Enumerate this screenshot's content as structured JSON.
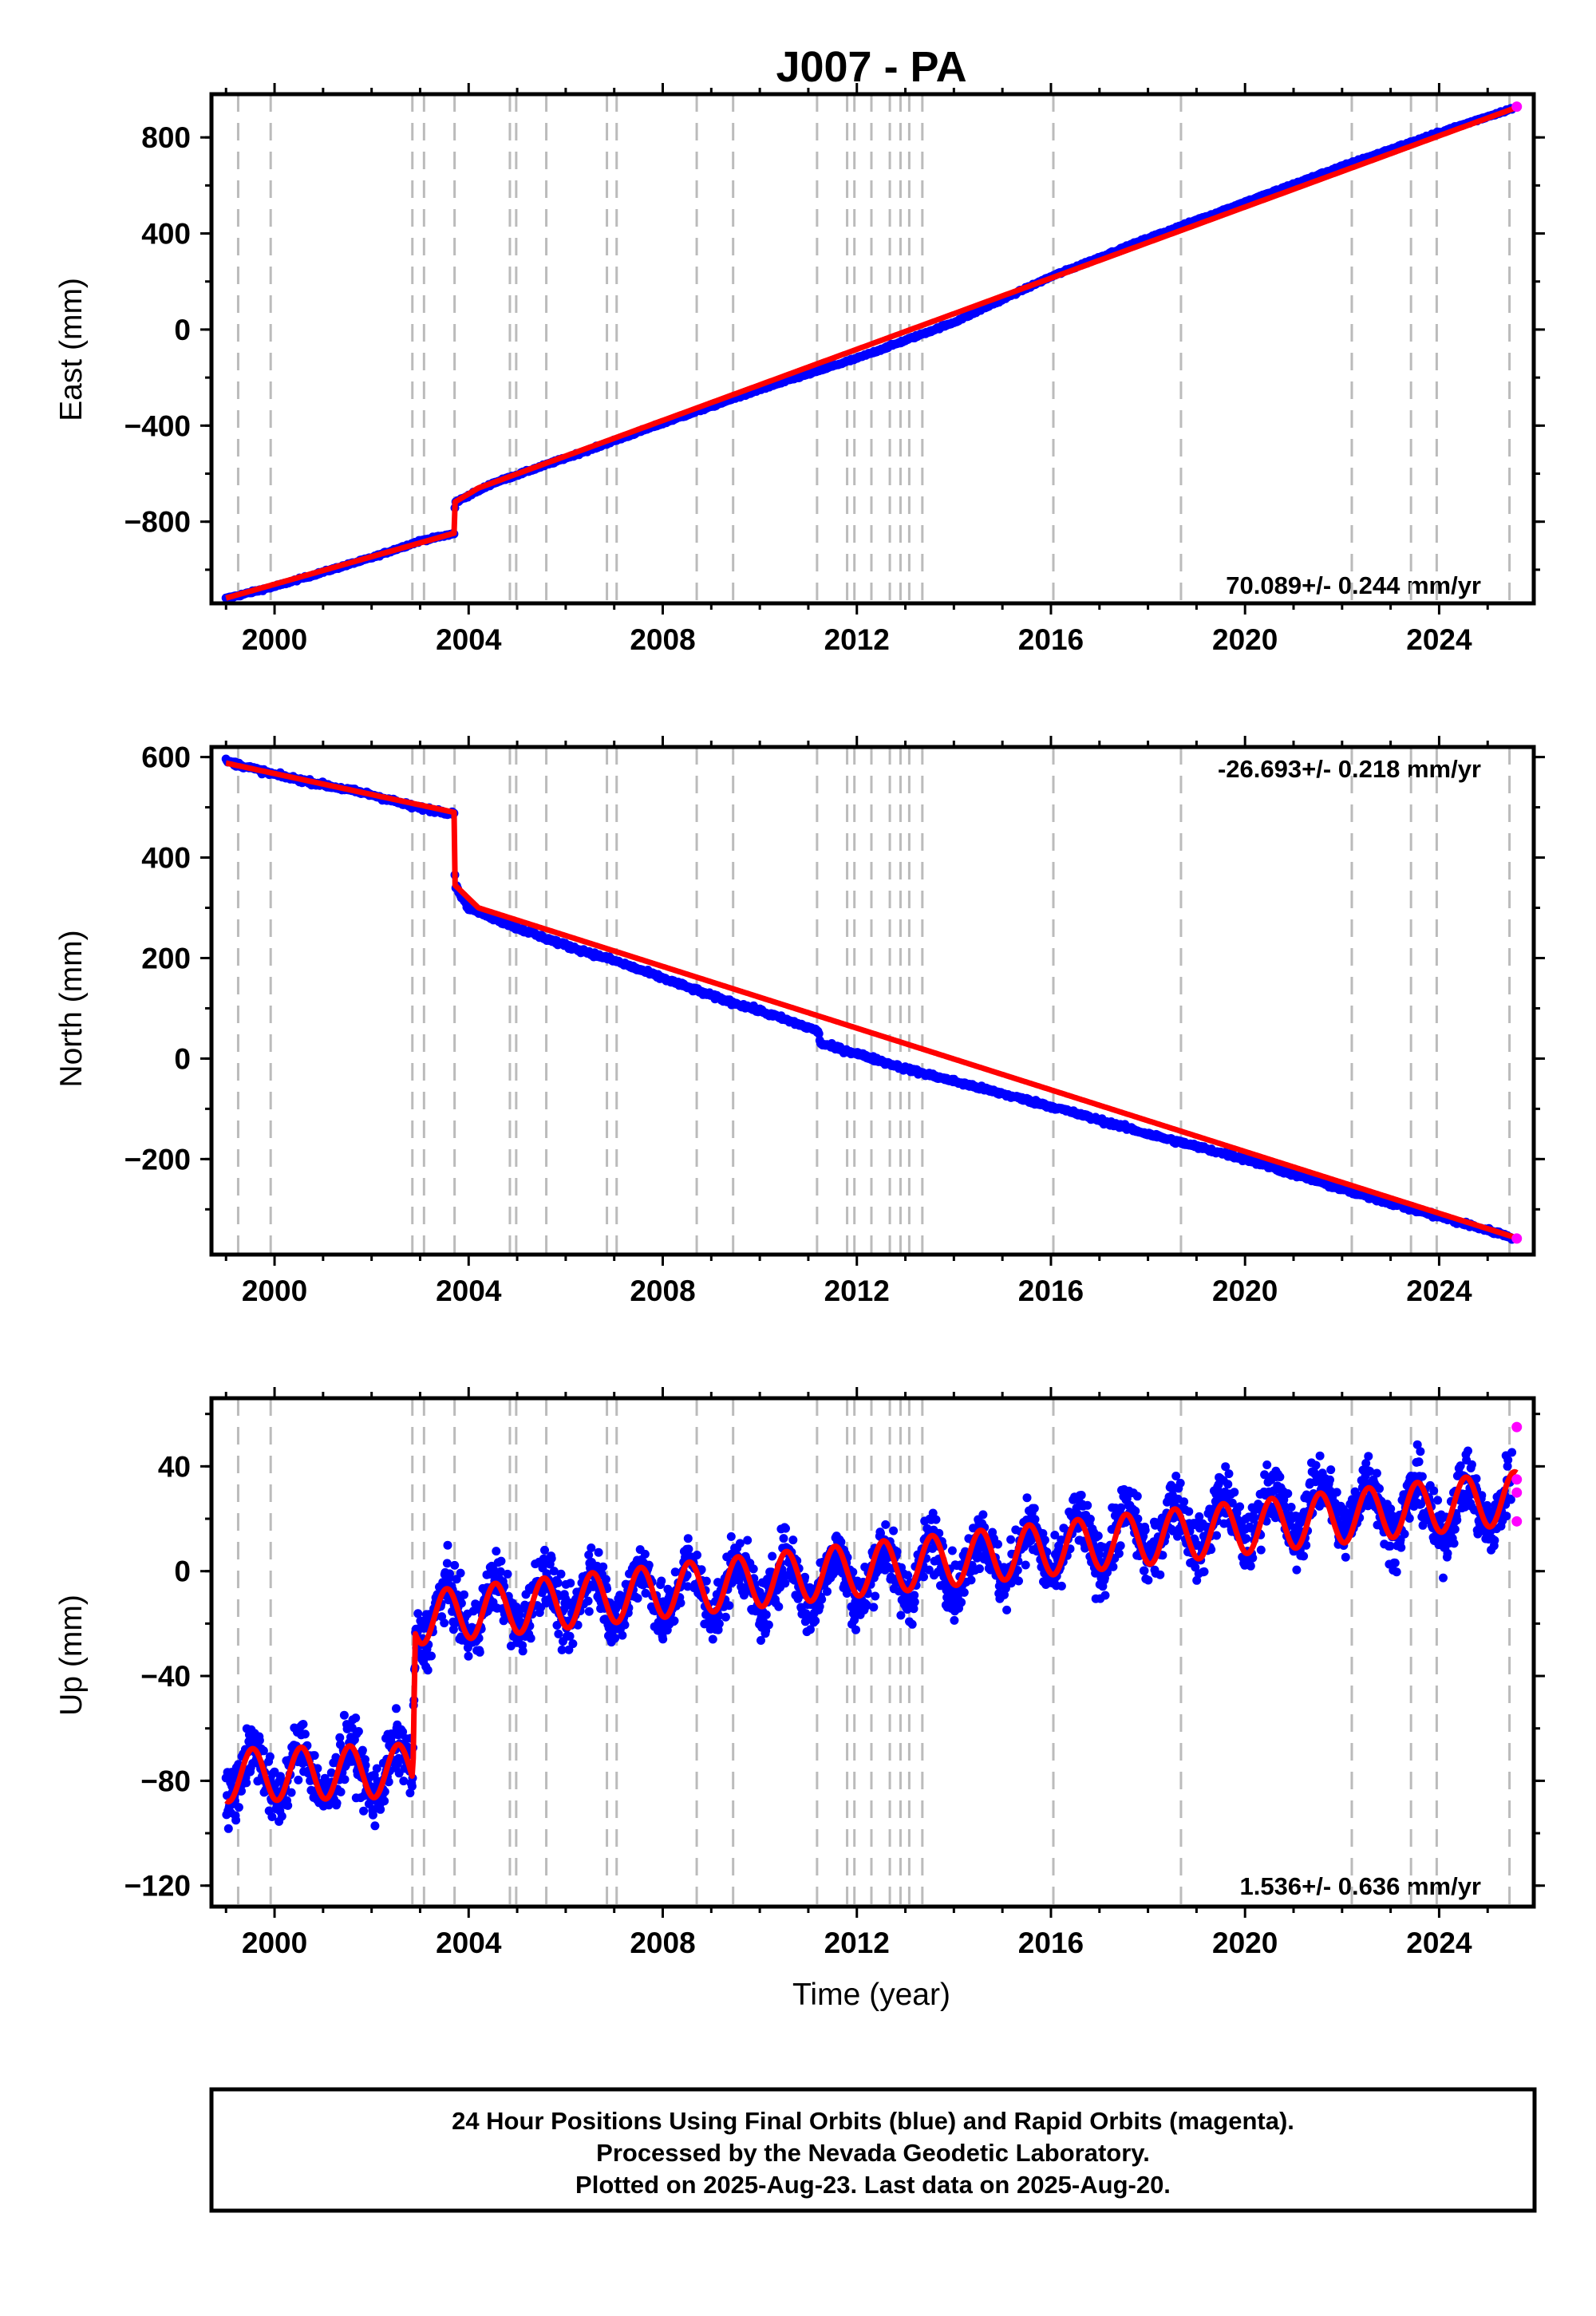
{
  "title": "J007 - PA",
  "xlabel": "Time (year)",
  "footer": {
    "line1": "24 Hour Positions Using Final Orbits (blue) and Rapid Orbits (magenta).",
    "line2": "Processed by the Nevada Geodetic Laboratory.",
    "line3": "Plotted on 2025-Aug-23. Last data on 2025-Aug-20."
  },
  "colors": {
    "final_orbits": "#0000ff",
    "rapid_orbits": "#ff00ff",
    "model": "#ff0000",
    "event_lines": "#bbbbbb"
  },
  "chart_data": [
    {
      "type": "scatter",
      "panel": "east",
      "ylabel": "East (mm)",
      "rate_label": "70.089+/- 0.244 mm/yr",
      "rate_position": "bottom-right",
      "xlim": [
        1998.7,
        2025.95
      ],
      "ylim": [
        -1140,
        980
      ],
      "xticks": [
        2000,
        2004,
        2008,
        2012,
        2016,
        2020,
        2024
      ],
      "yticks": [
        800,
        400,
        0,
        -400,
        -800
      ],
      "ytick_labels": [
        "800",
        "400",
        "0",
        "−400",
        "−800"
      ],
      "series": [
        {
          "role": "final",
          "x": [
            1999.0,
            2000.0,
            2001.0,
            2002.0,
            2003.0,
            2003.7,
            2003.72,
            2004.5,
            2005.5,
            2006.5,
            2008.0,
            2010.0,
            2012.0,
            2014.0,
            2016.0,
            2018.0,
            2020.0,
            2022.0,
            2024.0,
            2025.5
          ],
          "y": [
            -1120,
            -1070,
            -1010,
            -950,
            -880,
            -850,
            -720,
            -640,
            -570,
            -500,
            -390,
            -250,
            -120,
            30,
            220,
            380,
            530,
            680,
            820,
            920
          ]
        },
        {
          "role": "rapid",
          "x": [
            2025.6
          ],
          "y": [
            928
          ]
        }
      ],
      "model": {
        "x": [
          1999.0,
          2003.7,
          2003.72,
          2004.2,
          2025.6
        ],
        "y": [
          -1118,
          -848,
          -718,
          -660,
          925
        ]
      },
      "scatter_half_width": 7
    },
    {
      "type": "scatter",
      "panel": "north",
      "ylabel": "North (mm)",
      "rate_label": "-26.693+/- 0.218 mm/yr",
      "rate_position": "top-right",
      "xlim": [
        1998.7,
        2025.95
      ],
      "ylim": [
        -390,
        620
      ],
      "xticks": [
        2000,
        2004,
        2008,
        2012,
        2016,
        2020,
        2024
      ],
      "yticks": [
        600,
        400,
        200,
        0,
        -200
      ],
      "ytick_labels": [
        "600",
        "400",
        "200",
        "0",
        "−200"
      ],
      "series": [
        {
          "role": "final",
          "x": [
            1999.0,
            2000.0,
            2001.0,
            2002.0,
            2002.9,
            2003.7,
            2003.72,
            2004.0,
            2005.0,
            2006.0,
            2007.0,
            2008.0,
            2009.0,
            2010.0,
            2011.2,
            2011.25,
            2012.0,
            2013.0,
            2014.0,
            2015.0,
            2016.0,
            2018.0,
            2020.0,
            2022.0,
            2024.0,
            2025.5
          ],
          "y": [
            592,
            565,
            545,
            525,
            500,
            488,
            345,
            300,
            260,
            225,
            195,
            160,
            125,
            95,
            55,
            30,
            10,
            -20,
            -45,
            -70,
            -95,
            -150,
            -200,
            -260,
            -315,
            -355
          ]
        },
        {
          "role": "rapid",
          "x": [
            2025.6
          ],
          "y": [
            -358
          ]
        }
      ],
      "model": {
        "x": [
          1999.0,
          2003.7,
          2003.72,
          2004.2,
          2025.6
        ],
        "y": [
          588,
          490,
          345,
          300,
          -357
        ]
      },
      "scatter_half_width": 7
    },
    {
      "type": "scatter",
      "panel": "up",
      "ylabel": "Up (mm)",
      "rate_label": "1.536+/- 0.636 mm/yr",
      "rate_position": "bottom-right",
      "xlim": [
        1998.7,
        2025.95
      ],
      "ylim": [
        -128,
        66
      ],
      "xticks": [
        2000,
        2004,
        2008,
        2012,
        2016,
        2020,
        2024
      ],
      "yticks": [
        40,
        0,
        -40,
        -80,
        -120
      ],
      "ytick_labels": [
        "40",
        "0",
        "−40",
        "−80",
        "−120"
      ],
      "series": [
        {
          "role": "final",
          "x": [
            1999.0,
            2000.0,
            2001.0,
            2002.0,
            2002.85,
            2002.9,
            2004.0,
            2006.0,
            2008.0,
            2010.0,
            2012.0,
            2014.0,
            2016.0,
            2018.0,
            2020.0,
            2022.0,
            2024.0,
            2025.5
          ],
          "y": [
            -78,
            -77,
            -77,
            -76,
            -76,
            -18,
            -15,
            -10,
            -8,
            -5,
            -2,
            3,
            8,
            15,
            20,
            26,
            22,
            28
          ]
        },
        {
          "role": "rapid",
          "x": [
            2025.6,
            2025.6,
            2025.6,
            2025.6
          ],
          "y": [
            55,
            35,
            30,
            19
          ]
        }
      ],
      "model": {
        "x": [
          1999.0,
          2002.85,
          2002.9,
          2025.6
        ],
        "y": [
          -78,
          -76,
          -18,
          28
        ],
        "seasonal_amplitude": 10
      },
      "scatter_half_width": 18
    }
  ],
  "event_lines_years": [
    1999.25,
    1999.92,
    2002.84,
    2003.08,
    2003.71,
    2004.85,
    2004.98,
    2005.6,
    2006.85,
    2007.05,
    2008.7,
    2009.45,
    2011.18,
    2011.8,
    2011.95,
    2012.3,
    2012.68,
    2012.9,
    2013.08,
    2013.35,
    2016.05,
    2018.68,
    2022.2,
    2023.42,
    2023.95,
    2025.45
  ]
}
